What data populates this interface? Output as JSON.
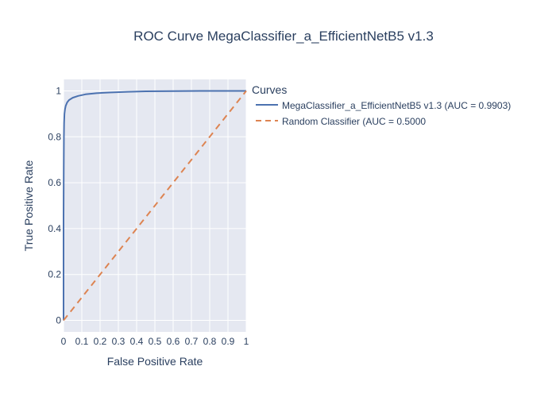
{
  "chart_data": {
    "type": "line",
    "title": "ROC Curve MegaClassifier_a_EfficientNetB5 v1.3",
    "xlabel": "False Positive Rate",
    "ylabel": "True Positive Rate",
    "xlim": [
      0,
      1
    ],
    "ylim": [
      -0.05,
      1.05
    ],
    "x_ticks": [
      0,
      0.1,
      0.2,
      0.3,
      0.4,
      0.5,
      0.6,
      0.7,
      0.8,
      0.9,
      1
    ],
    "x_tick_labels": [
      "0",
      "0.1",
      "0.2",
      "0.3",
      "0.4",
      "0.5",
      "0.6",
      "0.7",
      "0.8",
      "0.9",
      "1"
    ],
    "y_ticks": [
      0,
      0.2,
      0.4,
      0.6,
      0.8,
      1
    ],
    "y_tick_labels": [
      "0",
      "0.2",
      "0.4",
      "0.6",
      "0.8",
      "1"
    ],
    "grid": true,
    "legend": {
      "title": "Curves",
      "placement": "right"
    },
    "series": [
      {
        "name": "MegaClassifier_a_EfficientNetB5 v1.3 (AUC = 0.9903)",
        "color": "#4c72b0",
        "dash": "solid",
        "x": [
          0,
          0,
          0.001,
          0.002,
          0.003,
          0.005,
          0.008,
          0.012,
          0.02,
          0.03,
          0.05,
          0.08,
          0.12,
          0.18,
          0.25,
          0.35,
          0.45,
          0.6,
          0.75,
          0.9,
          0.95,
          1
        ],
        "y": [
          0,
          0.45,
          0.65,
          0.8,
          0.86,
          0.9,
          0.92,
          0.935,
          0.95,
          0.96,
          0.97,
          0.978,
          0.985,
          0.99,
          0.993,
          0.996,
          0.998,
          0.999,
          1,
          1,
          1,
          1
        ]
      },
      {
        "name": "Random Classifier (AUC = 0.5000",
        "color": "#dd8452",
        "dash": "dashed",
        "x": [
          0,
          1
        ],
        "y": [
          0,
          1
        ]
      }
    ]
  }
}
